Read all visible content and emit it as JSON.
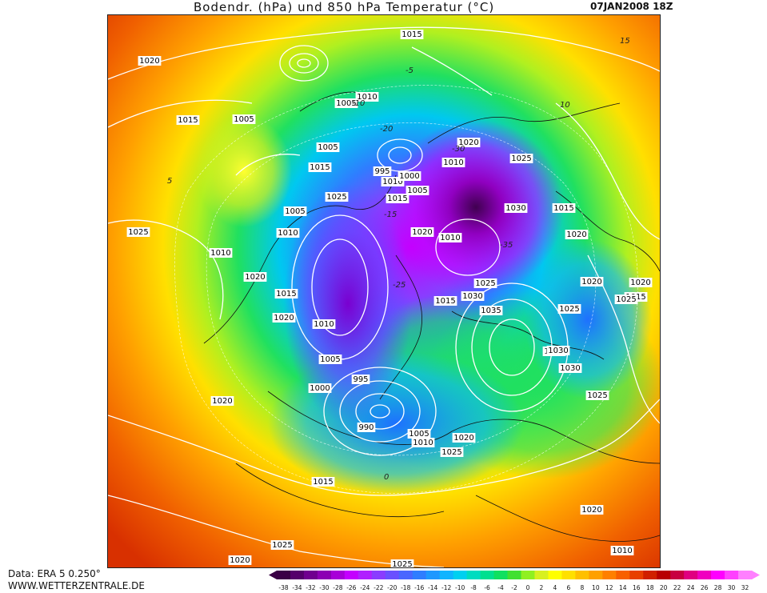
{
  "title": "Bodendr. (hPa) und 850 hPa Temperatur (°C)",
  "datetime": "07JAN2008 18Z",
  "footer": {
    "data_source": "Data: ERA 5 0.250°",
    "website": "WWW.WETTERZENTRALE.DE"
  },
  "legend": {
    "ticks": [
      "-38",
      "-34",
      "-32",
      "-30",
      "-28",
      "-26",
      "-24",
      "-22",
      "-20",
      "-18",
      "-16",
      "-14",
      "-12",
      "-10",
      "-8",
      "-6",
      "-4",
      "-2",
      "0",
      "2",
      "4",
      "6",
      "8",
      "10",
      "12",
      "14",
      "16",
      "18",
      "20",
      "22",
      "24",
      "26",
      "28",
      "30",
      "32"
    ],
    "colors": [
      "#3a0045",
      "#55006b",
      "#70008f",
      "#8c00b3",
      "#a800d8",
      "#c400ff",
      "#b020ff",
      "#8a3cff",
      "#6a50ff",
      "#4a66ff",
      "#2f7dff",
      "#1e98ff",
      "#10b4ff",
      "#00d0f0",
      "#00dcc0",
      "#00e090",
      "#10e060",
      "#40e030",
      "#90f020",
      "#d8f020",
      "#ffff00",
      "#ffe000",
      "#ffc000",
      "#ffa000",
      "#ff8000",
      "#f86000",
      "#e84000",
      "#d02000",
      "#b80000",
      "#c80040",
      "#e00080",
      "#f000c0",
      "#ff00ff",
      "#ff40ff",
      "#ff80ff"
    ]
  },
  "pressure_labels": [
    "1015",
    "1020",
    "1015",
    "1005",
    "1010",
    "1005",
    "1005",
    "1015",
    "995",
    "1010",
    "1000",
    "1005",
    "1015",
    "1010",
    "1020",
    "1025",
    "1025",
    "1030",
    "1020",
    "1015",
    "1020",
    "1010",
    "1005",
    "1010",
    "1025",
    "1020",
    "1010",
    "1015",
    "1030",
    "1035",
    "1025",
    "1030",
    "1030",
    "1025",
    "1020",
    "1020",
    "1025",
    "1030",
    "1015",
    "1010",
    "1020",
    "1005",
    "995",
    "1000",
    "990",
    "1005",
    "1010",
    "1020",
    "1025",
    "1015",
    "1020",
    "1025",
    "1025",
    "1020",
    "1015",
    "1025",
    "1020",
    "1010"
  ],
  "temperature_labels": [
    "-5",
    "-10",
    "-15",
    "-20",
    "-25",
    "-30",
    "-35",
    "5",
    "10",
    "15",
    "0"
  ]
}
